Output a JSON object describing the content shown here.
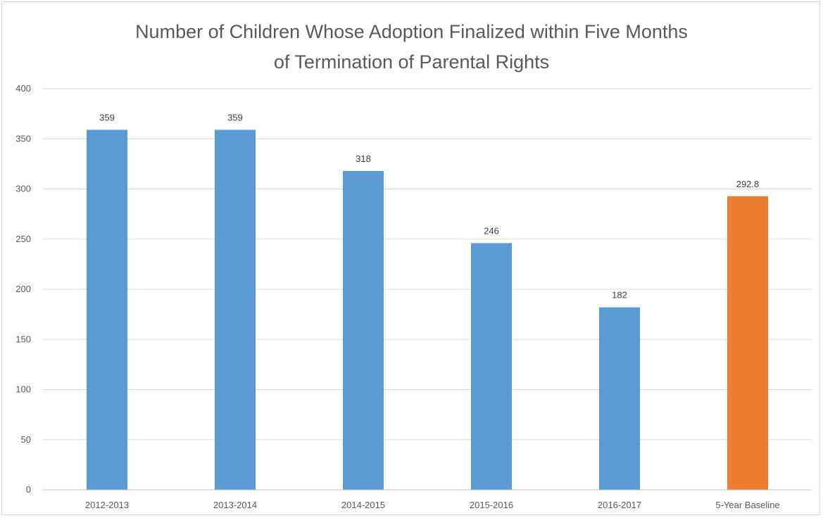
{
  "chart_data": {
    "type": "bar",
    "title_lines": [
      "Number of Children Whose Adoption Finalized within Five Months",
      "of Termination of Parental Rights"
    ],
    "categories": [
      "2012-2013",
      "2013-2014",
      "2014-2015",
      "2015-2016",
      "2016-2017",
      "5-Year Baseline"
    ],
    "values": [
      359,
      359,
      318,
      246,
      182,
      292.8
    ],
    "data_labels": [
      "359",
      "359",
      "318",
      "246",
      "182",
      "292.8"
    ],
    "bar_colors": [
      "#5b9bd5",
      "#5b9bd5",
      "#5b9bd5",
      "#5b9bd5",
      "#5b9bd5",
      "#ed7d31"
    ],
    "ylim": [
      0,
      400
    ],
    "yticks": [
      0,
      50,
      100,
      150,
      200,
      250,
      300,
      350,
      400
    ],
    "xlabel": "",
    "ylabel": "",
    "grid": true,
    "legend": "none"
  }
}
